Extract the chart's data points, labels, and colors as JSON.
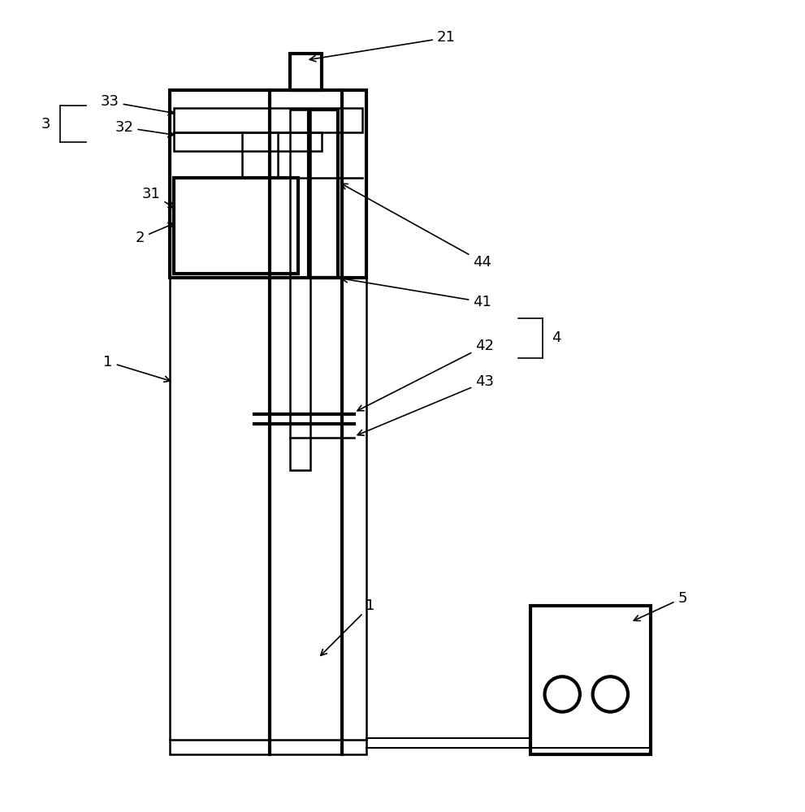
{
  "bg_color": "#ffffff",
  "lc": "#000000",
  "lw": 1.8,
  "tlw": 3.0,
  "fig_width": 9.91,
  "fig_height": 10.0,
  "fs": 13
}
